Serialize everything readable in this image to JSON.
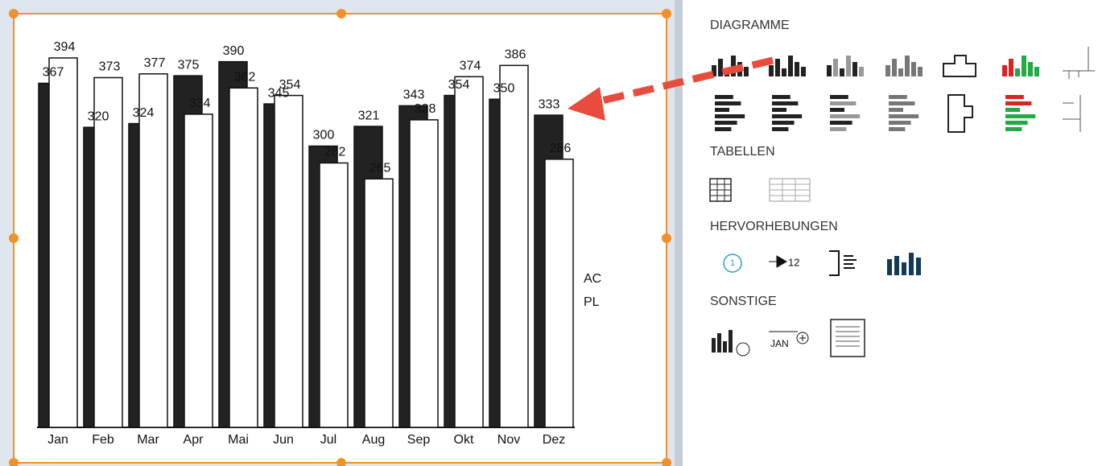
{
  "chart_data": {
    "type": "bar",
    "categories": [
      "Jan",
      "Feb",
      "Mar",
      "Apr",
      "Mai",
      "Jun",
      "Jul",
      "Aug",
      "Sep",
      "Okt",
      "Nov",
      "Dez"
    ],
    "series": [
      {
        "name": "AC",
        "color": "#222222",
        "values": [
          367,
          320,
          324,
          375,
          390,
          345,
          300,
          321,
          343,
          354,
          350,
          333
        ]
      },
      {
        "name": "PL",
        "color": "#ffffff",
        "values": [
          394,
          373,
          377,
          334,
          362,
          354,
          282,
          265,
          328,
          374,
          386,
          286
        ]
      }
    ]
  },
  "panel": {
    "sections": [
      "DIAGRAMME",
      "TABELLEN",
      "HERVORHEBUNGEN",
      "SONSTIGE"
    ],
    "icon_texts": [
      "1",
      "12",
      "JAN"
    ]
  }
}
